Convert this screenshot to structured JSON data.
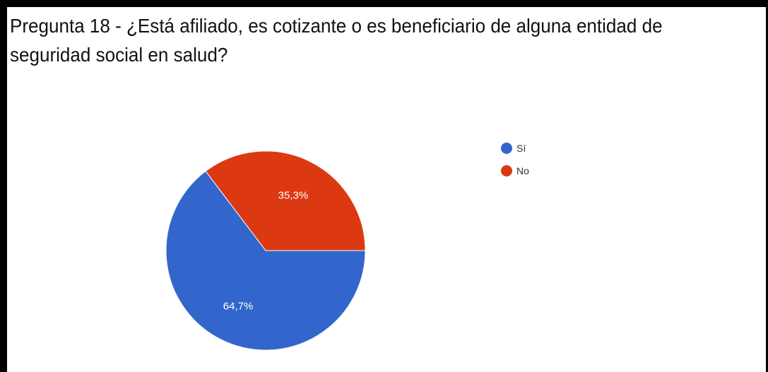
{
  "chart_data": {
    "type": "pie",
    "title": "Pregunta 18 - ¿Está afiliado, es cotizante o es beneficiario de alguna entidad de seguridad social en salud?",
    "categories": [
      "Sí",
      "No"
    ],
    "values": [
      64.7,
      35.3
    ],
    "labels": [
      "64,7%",
      "35,3%"
    ],
    "colors": [
      "#3366cc",
      "#dc3912"
    ],
    "legend": {
      "position": "right",
      "entries": [
        "Sí",
        "No"
      ]
    },
    "start_angle_deg": 90,
    "direction": "counterclockwise_from_right"
  }
}
